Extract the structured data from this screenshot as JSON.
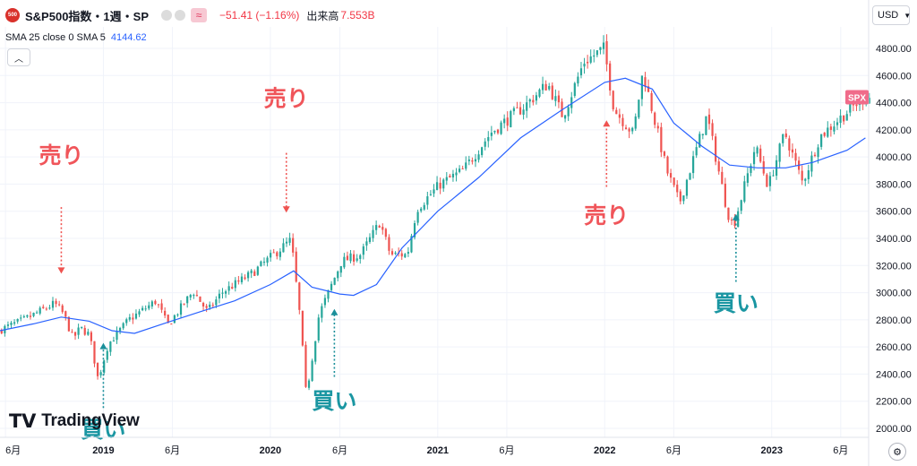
{
  "header": {
    "badge": "500",
    "title": "S&P500指数・1週・SP",
    "compare_symbol": "≈",
    "change": "−51.41 (−1.16%)",
    "volume_label": "出来高",
    "volume_value": "7.553B",
    "dot_colors": [
      "#dcdcdc",
      "#dcdcdc"
    ]
  },
  "indicator": {
    "label": "SMA 25 close 0 SMA 5",
    "value": "4144.62"
  },
  "currency": "USD",
  "collapse_icon": "chevron-up-icon",
  "logo": {
    "mark": "TV",
    "text": "TradingView"
  },
  "chart_data": {
    "type": "candlestick",
    "symbol": "SPX",
    "last_price_label": "SPX",
    "ylim": [
      1950,
      4900
    ],
    "yticks": [
      2000,
      2200,
      2400,
      2600,
      2800,
      3000,
      3200,
      3400,
      3600,
      3800,
      4000,
      4200,
      4400,
      4600,
      4800
    ],
    "x_range": [
      "2018-05-20",
      "2023-08-01"
    ],
    "xticks": [
      {
        "label": "6月",
        "date": "2018-06-01",
        "bold": false
      },
      {
        "label": "2019",
        "date": "2019-01-01",
        "bold": true
      },
      {
        "label": "6月",
        "date": "2019-06-01",
        "bold": false
      },
      {
        "label": "2020",
        "date": "2020-01-01",
        "bold": true
      },
      {
        "label": "6月",
        "date": "2020-06-01",
        "bold": false
      },
      {
        "label": "2021",
        "date": "2021-01-01",
        "bold": true
      },
      {
        "label": "6月",
        "date": "2021-06-01",
        "bold": false
      },
      {
        "label": "2022",
        "date": "2022-01-01",
        "bold": true
      },
      {
        "label": "6月",
        "date": "2022-06-01",
        "bold": false
      },
      {
        "label": "2023",
        "date": "2023-01-01",
        "bold": true
      },
      {
        "label": "6月",
        "date": "2023-06-01",
        "bold": false
      }
    ],
    "price_path": [
      [
        "2018-05-20",
        2720
      ],
      [
        "2018-07-15",
        2800
      ],
      [
        "2018-09-20",
        2920
      ],
      [
        "2018-10-10",
        2840
      ],
      [
        "2018-10-30",
        2660
      ],
      [
        "2018-11-15",
        2740
      ],
      [
        "2018-12-05",
        2690
      ],
      [
        "2018-12-24",
        2360
      ],
      [
        "2019-01-15",
        2620
      ],
      [
        "2019-03-01",
        2800
      ],
      [
        "2019-04-30",
        2940
      ],
      [
        "2019-05-25",
        2760
      ],
      [
        "2019-07-20",
        3010
      ],
      [
        "2019-08-20",
        2860
      ],
      [
        "2019-09-20",
        3000
      ],
      [
        "2019-11-25",
        3140
      ],
      [
        "2020-01-15",
        3290
      ],
      [
        "2020-02-19",
        3390
      ],
      [
        "2020-03-10",
        2800
      ],
      [
        "2020-03-23",
        2240
      ],
      [
        "2020-04-20",
        2840
      ],
      [
        "2020-06-08",
        3230
      ],
      [
        "2020-07-20",
        3280
      ],
      [
        "2020-08-31",
        3520
      ],
      [
        "2020-09-23",
        3280
      ],
      [
        "2020-10-30",
        3280
      ],
      [
        "2020-11-20",
        3620
      ],
      [
        "2021-01-10",
        3800
      ],
      [
        "2021-03-01",
        3900
      ],
      [
        "2021-05-01",
        4180
      ],
      [
        "2021-07-15",
        4380
      ],
      [
        "2021-09-02",
        4540
      ],
      [
        "2021-10-05",
        4300
      ],
      [
        "2021-11-20",
        4700
      ],
      [
        "2022-01-03",
        4800
      ],
      [
        "2022-01-25",
        4350
      ],
      [
        "2022-03-08",
        4170
      ],
      [
        "2022-03-29",
        4630
      ],
      [
        "2022-05-20",
        3900
      ],
      [
        "2022-06-17",
        3660
      ],
      [
        "2022-08-16",
        4305
      ],
      [
        "2022-09-30",
        3590
      ],
      [
        "2022-10-13",
        3490
      ],
      [
        "2022-11-30",
        4080
      ],
      [
        "2022-12-28",
        3780
      ],
      [
        "2023-02-02",
        4180
      ],
      [
        "2023-03-13",
        3810
      ],
      [
        "2023-04-20",
        4150
      ],
      [
        "2023-06-01",
        4280
      ],
      [
        "2023-07-25",
        4440
      ]
    ],
    "sma_line": [
      [
        "2018-05-20",
        2720
      ],
      [
        "2018-08-01",
        2770
      ],
      [
        "2018-10-01",
        2820
      ],
      [
        "2018-12-01",
        2790
      ],
      [
        "2019-01-20",
        2720
      ],
      [
        "2019-03-10",
        2700
      ],
      [
        "2019-05-20",
        2780
      ],
      [
        "2019-08-01",
        2860
      ],
      [
        "2019-10-15",
        2940
      ],
      [
        "2020-01-01",
        3060
      ],
      [
        "2020-02-21",
        3160
      ],
      [
        "2020-04-01",
        3040
      ],
      [
        "2020-06-01",
        2990
      ],
      [
        "2020-07-01",
        2980
      ],
      [
        "2020-08-20",
        3060
      ],
      [
        "2020-10-15",
        3330
      ],
      [
        "2021-01-01",
        3600
      ],
      [
        "2021-04-01",
        3850
      ],
      [
        "2021-07-01",
        4140
      ],
      [
        "2021-10-01",
        4350
      ],
      [
        "2022-01-01",
        4550
      ],
      [
        "2022-02-15",
        4580
      ],
      [
        "2022-04-15",
        4500
      ],
      [
        "2022-06-01",
        4250
      ],
      [
        "2022-08-01",
        4080
      ],
      [
        "2022-10-01",
        3940
      ],
      [
        "2022-12-01",
        3920
      ],
      [
        "2023-02-01",
        3920
      ],
      [
        "2023-04-01",
        3960
      ],
      [
        "2023-06-15",
        4050
      ],
      [
        "2023-07-25",
        4140
      ]
    ],
    "annotations": [
      {
        "text": "売り",
        "kind": "sell",
        "date": "2018-10-01",
        "text_price": 4000,
        "arrow_from": 3630,
        "arrow_to": 3140
      },
      {
        "text": "買い",
        "kind": "buy",
        "date": "2019-01-01",
        "text_price": 1980,
        "arrow_from": 2150,
        "arrow_to": 2630
      },
      {
        "text": "売り",
        "kind": "sell",
        "date": "2020-02-05",
        "text_price": 4420,
        "arrow_from": 4030,
        "arrow_to": 3590
      },
      {
        "text": "買い",
        "kind": "buy",
        "date": "2020-05-20",
        "text_price": 2190,
        "arrow_from": 2380,
        "arrow_to": 2880
      },
      {
        "text": "売り",
        "kind": "sell",
        "date": "2022-01-05",
        "text_price": 3560,
        "arrow_from": 3780,
        "arrow_to": 4270
      },
      {
        "text": "買い",
        "kind": "buy",
        "date": "2022-10-15",
        "text_price": 2910,
        "arrow_from": 3080,
        "arrow_to": 3580
      }
    ],
    "colors": {
      "up": "#26a69a",
      "down": "#ef5350",
      "sma": "#2962ff",
      "sell_text": "#f0555a",
      "buy_text": "#1a96a2",
      "sell_arrow": "#ef5350",
      "buy_arrow": "#1a8f9a",
      "price_tag": "#f06b8a",
      "grid": "#f0f3fa"
    }
  }
}
